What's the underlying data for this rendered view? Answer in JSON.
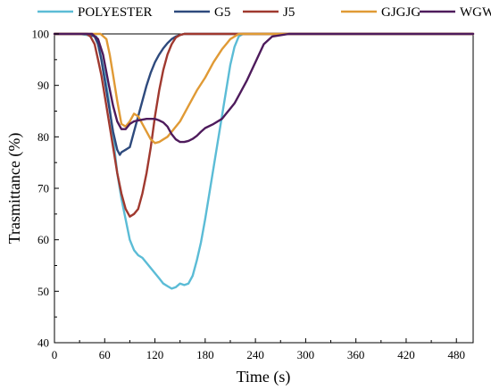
{
  "chart_data": {
    "type": "line",
    "title": "",
    "xlabel": "Time (s)",
    "ylabel": "Trasmittance (%)",
    "xlim": [
      0,
      500
    ],
    "ylim": [
      40,
      100
    ],
    "xticks": [
      0,
      60,
      120,
      180,
      240,
      300,
      360,
      420,
      480
    ],
    "yticks": [
      40,
      50,
      60,
      70,
      80,
      90,
      100
    ],
    "grid": false,
    "legend_position": "top",
    "series": [
      {
        "name": "POLYESTER",
        "color": "#5bbcd6",
        "x": [
          0,
          30,
          50,
          55,
          60,
          65,
          70,
          75,
          80,
          85,
          90,
          95,
          100,
          105,
          110,
          115,
          120,
          125,
          130,
          135,
          140,
          145,
          150,
          155,
          160,
          165,
          170,
          175,
          180,
          185,
          190,
          195,
          200,
          205,
          210,
          215,
          220,
          225,
          230,
          240,
          300,
          400,
          500
        ],
        "y": [
          100,
          100,
          99.5,
          96,
          92,
          87,
          80,
          73,
          68,
          64,
          60,
          58,
          57,
          56.5,
          55.5,
          54.5,
          53.5,
          52.5,
          51.5,
          51,
          50.5,
          50.8,
          51.5,
          51.2,
          51.5,
          53,
          56,
          59.5,
          64,
          69,
          74,
          79,
          84,
          89,
          94,
          97.5,
          99.5,
          100,
          100,
          100,
          100,
          100,
          100
        ]
      },
      {
        "name": "G5",
        "color": "#2e4a7d",
        "x": [
          0,
          40,
          48,
          52,
          56,
          60,
          65,
          70,
          75,
          78,
          80,
          85,
          90,
          95,
          100,
          105,
          110,
          115,
          120,
          125,
          130,
          135,
          140,
          145,
          150,
          155,
          160,
          200,
          500
        ],
        "y": [
          100,
          100,
          99.5,
          98,
          95,
          91,
          86,
          81,
          77.5,
          76.5,
          77,
          77.5,
          78,
          81,
          84,
          87,
          90,
          92.5,
          94.5,
          96,
          97.2,
          98.2,
          99,
          99.5,
          99.8,
          100,
          100,
          100,
          100
        ]
      },
      {
        "name": "J5",
        "color": "#a0392f",
        "x": [
          0,
          38,
          43,
          48,
          52,
          56,
          60,
          65,
          70,
          75,
          80,
          85,
          90,
          95,
          100,
          105,
          110,
          115,
          120,
          125,
          130,
          135,
          140,
          145,
          150,
          155,
          160,
          200,
          500
        ],
        "y": [
          100,
          100,
          99.5,
          98,
          95,
          92,
          88,
          83,
          78,
          73,
          69,
          66,
          64.5,
          65,
          66,
          69,
          73,
          78,
          84,
          89,
          93,
          96,
          98,
          99.3,
          99.8,
          100,
          100,
          100,
          100
        ]
      },
      {
        "name": "GJGJG",
        "color": "#e09a35",
        "x": [
          0,
          55,
          62,
          66,
          70,
          75,
          80,
          85,
          90,
          95,
          100,
          105,
          110,
          115,
          120,
          125,
          130,
          135,
          140,
          150,
          160,
          170,
          180,
          190,
          200,
          210,
          220,
          240,
          500
        ],
        "y": [
          100,
          100,
          99,
          96,
          92,
          87,
          82.5,
          82,
          83,
          84.5,
          84,
          82.5,
          81,
          79.5,
          78.8,
          79,
          79.5,
          80,
          81,
          83,
          86,
          89,
          91.5,
          94.5,
          97,
          99,
          100,
          100,
          100
        ]
      },
      {
        "name": "WGWGW",
        "color": "#4e1b5c",
        "x": [
          0,
          45,
          52,
          58,
          65,
          70,
          75,
          80,
          85,
          90,
          95,
          100,
          110,
          120,
          125,
          130,
          135,
          140,
          145,
          150,
          155,
          160,
          165,
          170,
          175,
          180,
          190,
          200,
          205,
          210,
          215,
          220,
          230,
          240,
          250,
          260,
          280,
          500
        ],
        "y": [
          100,
          100,
          99,
          96,
          90,
          86,
          83,
          81.5,
          81.5,
          82.5,
          83,
          83.2,
          83.5,
          83.5,
          83.2,
          82.8,
          82,
          80.5,
          79.5,
          79,
          79,
          79.2,
          79.6,
          80.2,
          81,
          81.7,
          82.5,
          83.5,
          84.5,
          85.5,
          86.5,
          88,
          91,
          94.5,
          98,
          99.5,
          100,
          100
        ]
      }
    ]
  }
}
